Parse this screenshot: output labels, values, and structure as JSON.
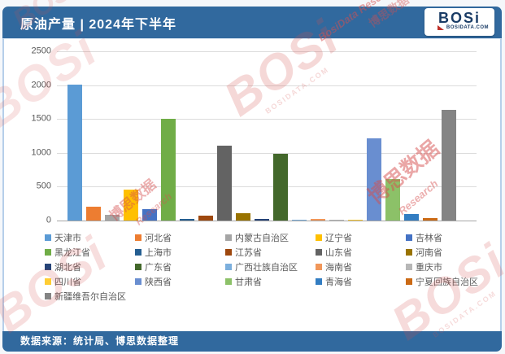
{
  "header": {
    "title": "原油产量 | 2024年下半年",
    "logo": {
      "text": "BOSi",
      "domain": "BOSIDATA.COM"
    }
  },
  "footer": {
    "source_text": "数据来源：统计局、博思数据整理"
  },
  "watermarks": {
    "brand": "BOSi",
    "domain": "BOSIDATA.COM",
    "cn": "博思数据",
    "script": "BosiData Research",
    "research": "Research"
  },
  "colors": {
    "header_bar": "#31699E",
    "footer_bar": "#31699E",
    "frame_border": "#B6CFEA",
    "gridline": "#DCDCDC",
    "axis_line": "#A6A6A6",
    "text_gray": "#595959",
    "watermark_red": "#D6504F",
    "logo_navy": "#1A3C66",
    "logo_red": "#C0322B"
  },
  "chart_data": {
    "type": "bar",
    "title": "原油产量 | 2024年下半年",
    "xlabel": "",
    "ylabel": "",
    "ylim": [
      0,
      2500
    ],
    "yticks": [
      0,
      500,
      1000,
      1500,
      2000,
      2500
    ],
    "grid": true,
    "legend_position": "bottom",
    "categories": [
      "天津市",
      "河北省",
      "内蒙古自治区",
      "辽宁省",
      "吉林省",
      "黑龙江省",
      "上海市",
      "江苏省",
      "山东省",
      "河南省",
      "湖北省",
      "广东省",
      "广西壮族自治区",
      "海南省",
      "重庆市",
      "四川省",
      "陕西省",
      "甘肃省",
      "青海省",
      "宁夏回族自治区",
      "新疆维吾尔自治区"
    ],
    "values": [
      2010,
      210,
      85,
      460,
      170,
      1500,
      25,
      70,
      1100,
      110,
      25,
      980,
      12,
      20,
      10,
      10,
      1210,
      615,
      100,
      40,
      1640
    ],
    "colors": [
      "#5B9BD5",
      "#ED7D31",
      "#A5A5A5",
      "#FFC000",
      "#4472C4",
      "#70AD47",
      "#255E91",
      "#9E480E",
      "#636363",
      "#997300",
      "#264478",
      "#43682B",
      "#7CAFDD",
      "#F1975A",
      "#B7B7B7",
      "#FFCD33",
      "#698ED0",
      "#8CC168",
      "#327DC2",
      "#CB6A15",
      "#848484"
    ]
  }
}
